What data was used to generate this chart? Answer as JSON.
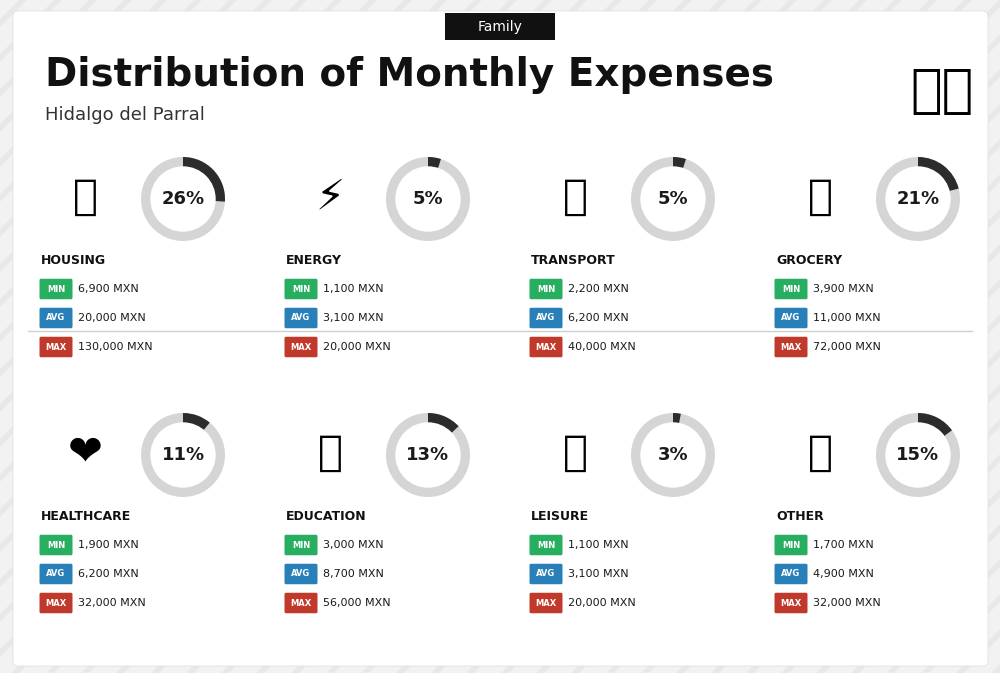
{
  "title": "Distribution of Monthly Expenses",
  "subtitle": "Hidalgo del Parral",
  "tag": "Family",
  "bg_color": "#f2f2f2",
  "card_color": "#f5f5f5",
  "categories": [
    {
      "name": "HOUSING",
      "pct": 26,
      "min_val": "6,900 MXN",
      "avg_val": "20,000 MXN",
      "max_val": "130,000 MXN",
      "row": 0,
      "col": 0,
      "icon": "🏙"
    },
    {
      "name": "ENERGY",
      "pct": 5,
      "min_val": "1,100 MXN",
      "avg_val": "3,100 MXN",
      "max_val": "20,000 MXN",
      "row": 0,
      "col": 1,
      "icon": "⚡"
    },
    {
      "name": "TRANSPORT",
      "pct": 5,
      "min_val": "2,200 MXN",
      "avg_val": "6,200 MXN",
      "max_val": "40,000 MXN",
      "row": 0,
      "col": 2,
      "icon": "🚌"
    },
    {
      "name": "GROCERY",
      "pct": 21,
      "min_val": "3,900 MXN",
      "avg_val": "11,000 MXN",
      "max_val": "72,000 MXN",
      "row": 0,
      "col": 3,
      "icon": "🛒"
    },
    {
      "name": "HEALTHCARE",
      "pct": 11,
      "min_val": "1,900 MXN",
      "avg_val": "6,200 MXN",
      "max_val": "32,000 MXN",
      "row": 1,
      "col": 0,
      "icon": "❤️"
    },
    {
      "name": "EDUCATION",
      "pct": 13,
      "min_val": "3,000 MXN",
      "avg_val": "8,700 MXN",
      "max_val": "56,000 MXN",
      "row": 1,
      "col": 1,
      "icon": "🎓"
    },
    {
      "name": "LEISURE",
      "pct": 3,
      "min_val": "1,100 MXN",
      "avg_val": "3,100 MXN",
      "max_val": "20,000 MXN",
      "row": 1,
      "col": 2,
      "icon": "🛍"
    },
    {
      "name": "OTHER",
      "pct": 15,
      "min_val": "1,700 MXN",
      "avg_val": "4,900 MXN",
      "max_val": "32,000 MXN",
      "row": 1,
      "col": 3,
      "icon": "💰"
    }
  ],
  "min_color": "#27ae60",
  "avg_color": "#2980b9",
  "max_color": "#c0392b",
  "arc_dark": "#2c2c2c",
  "arc_light": "#d5d5d5",
  "title_fontsize": 28,
  "subtitle_fontsize": 13,
  "tag_fontsize": 10,
  "cat_fontsize": 9,
  "badge_fontsize": 6,
  "val_fontsize": 8,
  "pct_fontsize": 13
}
